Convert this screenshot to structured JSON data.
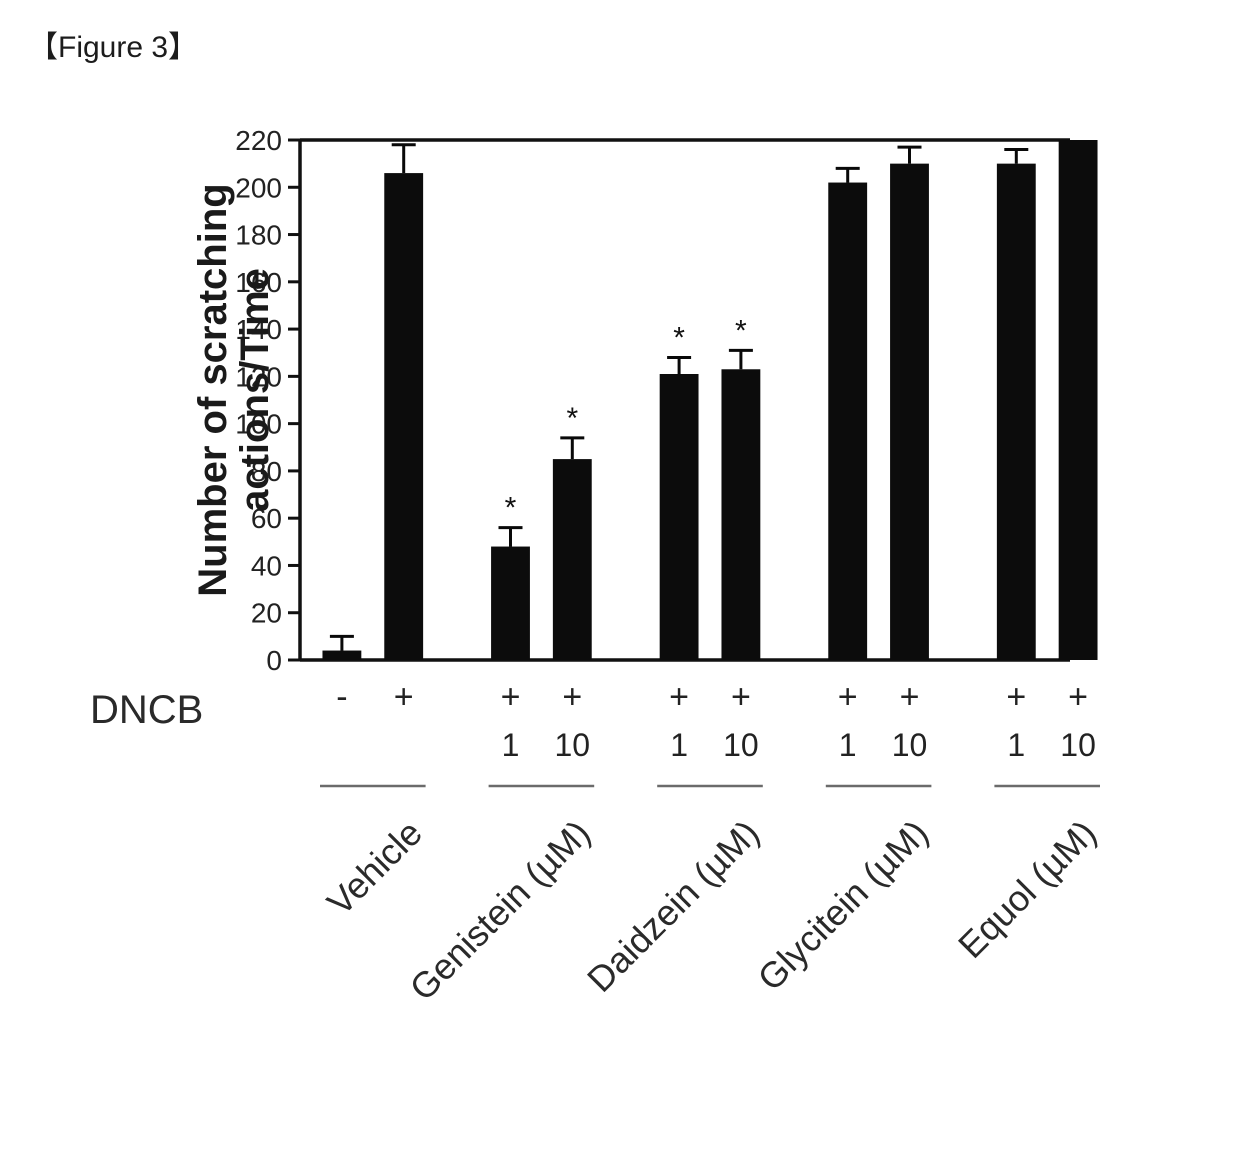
{
  "figure_label": "【Figure 3】",
  "chart": {
    "type": "bar",
    "ylabel_line1": "Number of scratching",
    "ylabel_line2": "actions/Time",
    "ylim": [
      0,
      220
    ],
    "ytick_step": 20,
    "yticks": [
      0,
      20,
      40,
      60,
      80,
      100,
      120,
      140,
      160,
      180,
      200,
      220
    ],
    "bar_color": "#0c0c0c",
    "error_color": "#090909",
    "background_color": "#ffffff",
    "bar_width": 0.75,
    "y_axis_label_fontsize": 40,
    "tick_fontsize": 28,
    "groups_label_fontsize": 36,
    "dncb_label": "DNCB",
    "groups": [
      {
        "name": "Vehicle",
        "bars": [
          {
            "value": 4,
            "error": 6,
            "sig": "",
            "dncb": "-",
            "dose": ""
          },
          {
            "value": 206,
            "error": 12,
            "sig": "",
            "dncb": "+",
            "dose": ""
          }
        ]
      },
      {
        "name": "Genistein (µM)",
        "bars": [
          {
            "value": 48,
            "error": 8,
            "sig": "*",
            "dncb": "+",
            "dose": "1"
          },
          {
            "value": 85,
            "error": 9,
            "sig": "*",
            "dncb": "+",
            "dose": "10"
          }
        ]
      },
      {
        "name": "Daidzein (µM)",
        "bars": [
          {
            "value": 121,
            "error": 7,
            "sig": "*",
            "dncb": "+",
            "dose": "1"
          },
          {
            "value": 123,
            "error": 8,
            "sig": "*",
            "dncb": "+",
            "dose": "10"
          }
        ]
      },
      {
        "name": "Glycitein (µM)",
        "bars": [
          {
            "value": 202,
            "error": 6,
            "sig": "",
            "dncb": "+",
            "dose": "1"
          },
          {
            "value": 210,
            "error": 7,
            "sig": "",
            "dncb": "+",
            "dose": "10"
          }
        ]
      },
      {
        "name": "Equol (µM)",
        "bars": [
          {
            "value": 210,
            "error": 6,
            "sig": "",
            "dncb": "+",
            "dose": "1"
          },
          {
            "value": 220,
            "error": 0,
            "sig": "",
            "dncb": "+",
            "dose": "10"
          }
        ]
      }
    ]
  }
}
